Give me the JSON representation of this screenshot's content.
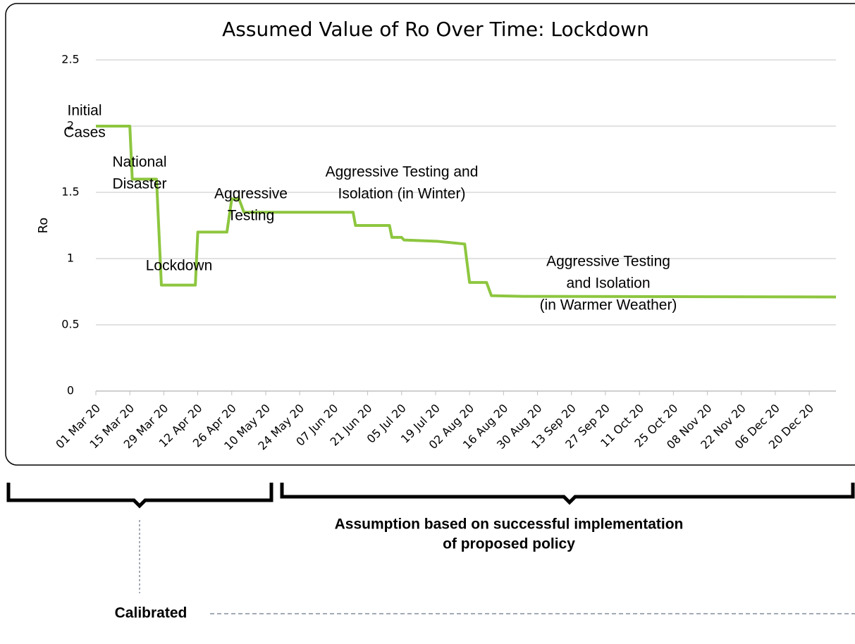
{
  "chart_data": {
    "type": "line",
    "title": "Assumed Value of Ro Over Time: Lockdown",
    "y_label": "Ro",
    "series": [
      {
        "color": "#8dc63f",
        "x": [
          "2020-03-01",
          "2020-03-15",
          "2020-03-16",
          "2020-03-26",
          "2020-03-28",
          "2020-04-11",
          "2020-04-12",
          "2020-04-24",
          "2020-04-26",
          "2020-04-29",
          "2020-05-01",
          "2020-06-15",
          "2020-06-16",
          "2020-06-30",
          "2020-07-01",
          "2020-07-05",
          "2020-07-06",
          "2020-07-20",
          "2020-07-31",
          "2020-08-02",
          "2020-08-09",
          "2020-08-11",
          "2020-08-24",
          "2020-12-31"
        ],
        "values": [
          2.0,
          2.0,
          1.6,
          1.6,
          0.8,
          0.8,
          1.2,
          1.2,
          1.45,
          1.45,
          1.35,
          1.35,
          1.25,
          1.25,
          1.16,
          1.16,
          1.14,
          1.13,
          1.11,
          0.82,
          0.82,
          0.72,
          0.715,
          0.71
        ]
      }
    ],
    "xlim": [
      "2020-03-01",
      "2020-12-31"
    ],
    "xticks": [
      {
        "value": "2020-03-01",
        "label": "01 Mar 20"
      },
      {
        "value": "2020-03-15",
        "label": "15 Mar 20"
      },
      {
        "value": "2020-03-29",
        "label": "29 Mar 20"
      },
      {
        "value": "2020-04-12",
        "label": "12 Apr 20"
      },
      {
        "value": "2020-04-26",
        "label": "26 Apr 20"
      },
      {
        "value": "2020-05-10",
        "label": "10 May 20"
      },
      {
        "value": "2020-05-24",
        "label": "24 May 20"
      },
      {
        "value": "2020-06-07",
        "label": "07 Jun 20"
      },
      {
        "value": "2020-06-21",
        "label": "21 Jun 20"
      },
      {
        "value": "2020-07-05",
        "label": "05 Jul 20"
      },
      {
        "value": "2020-07-19",
        "label": "19 Jul 20"
      },
      {
        "value": "2020-08-02",
        "label": "02 Aug 20"
      },
      {
        "value": "2020-08-16",
        "label": "16 Aug 20"
      },
      {
        "value": "2020-08-30",
        "label": "30 Aug 20"
      },
      {
        "value": "2020-09-13",
        "label": "13 Sep 20"
      },
      {
        "value": "2020-09-27",
        "label": "27 Sep 20"
      },
      {
        "value": "2020-10-11",
        "label": "11 Oct 20"
      },
      {
        "value": "2020-10-25",
        "label": "25 Oct 20"
      },
      {
        "value": "2020-11-08",
        "label": "08 Nov 20"
      },
      {
        "value": "2020-11-22",
        "label": "22 Nov 20"
      },
      {
        "value": "2020-12-06",
        "label": "06 Dec 20"
      },
      {
        "value": "2020-12-20",
        "label": "20 Dec 20"
      }
    ],
    "ylim": [
      0,
      2.5
    ],
    "yticks": [
      0,
      0.5,
      1,
      1.5,
      2,
      2.5
    ],
    "grid": true,
    "annotations": [
      {
        "lines": [
          "Initial",
          "Cases"
        ]
      },
      {
        "lines": [
          "National",
          "Disaster"
        ]
      },
      {
        "lines": [
          "Aggressive",
          "Testing"
        ]
      },
      {
        "lines": [
          "Aggressive Testing and",
          "Isolation (in Winter)"
        ]
      },
      {
        "lines": [
          "Lockdown"
        ]
      },
      {
        "lines": [
          "Aggressive Testing",
          "and Isolation",
          "(in Warmer Weather)"
        ]
      }
    ]
  },
  "notes": {
    "assumption": [
      "Assumption based on successful implementation",
      "of proposed policy"
    ],
    "calibrated": "Calibrated"
  }
}
